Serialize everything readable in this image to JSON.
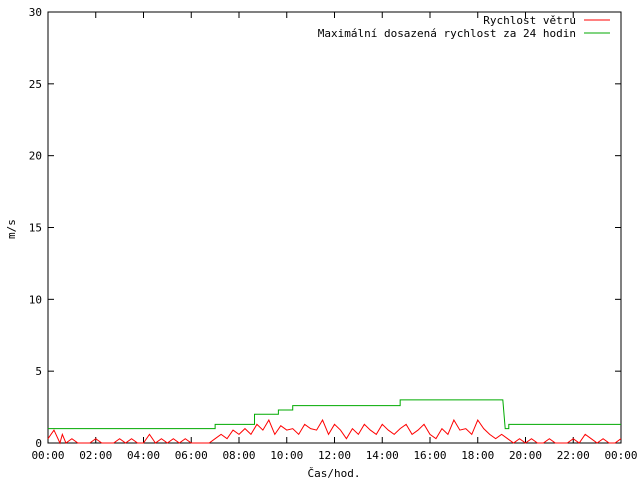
{
  "chart_data": {
    "type": "line",
    "title": "",
    "xlabel": "Čas/hod.",
    "ylabel": "m/s",
    "x_unit": "hours",
    "xlim": [
      0,
      24
    ],
    "ylim": [
      0,
      30
    ],
    "x_ticks": [
      0,
      2,
      4,
      6,
      8,
      10,
      12,
      14,
      16,
      18,
      20,
      22,
      24
    ],
    "x_tick_labels": [
      "00:00",
      "02:00",
      "04:00",
      "06:00",
      "08:00",
      "10:00",
      "12:00",
      "14:00",
      "16:00",
      "18:00",
      "20:00",
      "22:00",
      "00:00"
    ],
    "y_ticks": [
      0,
      5,
      10,
      15,
      20,
      25,
      30
    ],
    "y_tick_labels": [
      "0",
      "5",
      "10",
      "15",
      "20",
      "25",
      "30"
    ],
    "grid": false,
    "legend_position": "top-right",
    "series": [
      {
        "name": "Rychlost větru",
        "color": "#ff0000",
        "x": [
          0,
          0.25,
          0.5,
          0.6,
          0.75,
          1.0,
          1.25,
          1.5,
          1.75,
          2.0,
          2.25,
          2.5,
          2.75,
          3.0,
          3.25,
          3.5,
          3.75,
          4.0,
          4.25,
          4.5,
          4.75,
          5.0,
          5.25,
          5.5,
          5.75,
          6.0,
          6.25,
          6.5,
          6.75,
          7.0,
          7.25,
          7.5,
          7.75,
          8.0,
          8.25,
          8.5,
          8.75,
          9.0,
          9.25,
          9.5,
          9.75,
          10.0,
          10.25,
          10.5,
          10.75,
          11.0,
          11.25,
          11.5,
          11.75,
          12.0,
          12.25,
          12.5,
          12.75,
          13.0,
          13.25,
          13.5,
          13.75,
          14.0,
          14.25,
          14.5,
          14.75,
          15.0,
          15.25,
          15.5,
          15.75,
          16.0,
          16.25,
          16.5,
          16.75,
          17.0,
          17.25,
          17.5,
          17.75,
          18.0,
          18.25,
          18.5,
          18.75,
          19.0,
          19.25,
          19.5,
          19.75,
          20.0,
          20.25,
          20.5,
          20.75,
          21.0,
          21.25,
          21.5,
          21.75,
          22.0,
          22.25,
          22.5,
          22.75,
          23.0,
          23.25,
          23.5,
          23.75,
          24.0
        ],
        "values": [
          0.3,
          0.9,
          0.0,
          0.6,
          0.0,
          0.3,
          0.0,
          0.0,
          0.0,
          0.3,
          0.0,
          0.0,
          0.0,
          0.3,
          0.0,
          0.3,
          0.0,
          0.0,
          0.6,
          0.0,
          0.3,
          0.0,
          0.3,
          0.0,
          0.3,
          0.0,
          0.0,
          0.0,
          0.0,
          0.3,
          0.6,
          0.3,
          0.9,
          0.6,
          1.0,
          0.6,
          1.3,
          0.9,
          1.6,
          0.6,
          1.2,
          0.9,
          1.0,
          0.6,
          1.3,
          1.0,
          0.9,
          1.6,
          0.6,
          1.3,
          0.9,
          0.3,
          1.0,
          0.6,
          1.3,
          0.9,
          0.6,
          1.3,
          0.9,
          0.6,
          1.0,
          1.3,
          0.6,
          0.9,
          1.3,
          0.6,
          0.3,
          1.0,
          0.6,
          1.6,
          0.9,
          1.0,
          0.6,
          1.6,
          1.0,
          0.6,
          0.3,
          0.6,
          0.3,
          0.0,
          0.3,
          0.0,
          0.3,
          0.0,
          0.0,
          0.3,
          0.0,
          0.0,
          0.0,
          0.3,
          0.0,
          0.6,
          0.3,
          0.0,
          0.3,
          0.0,
          0.0,
          0.3
        ]
      },
      {
        "name": "Maximální dosazená rychlost za 24 hodin",
        "color": "#00aa00",
        "x": [
          0,
          7.0,
          7.0,
          8.65,
          8.65,
          9.65,
          9.65,
          10.25,
          10.25,
          10.5,
          10.5,
          14.75,
          14.75,
          19.05,
          19.15,
          19.3,
          19.3,
          24
        ],
        "values": [
          1.0,
          1.0,
          1.3,
          1.3,
          2.0,
          2.0,
          2.3,
          2.3,
          2.6,
          2.6,
          2.6,
          2.6,
          3.0,
          3.0,
          1.0,
          1.0,
          1.3,
          1.3
        ]
      }
    ]
  }
}
